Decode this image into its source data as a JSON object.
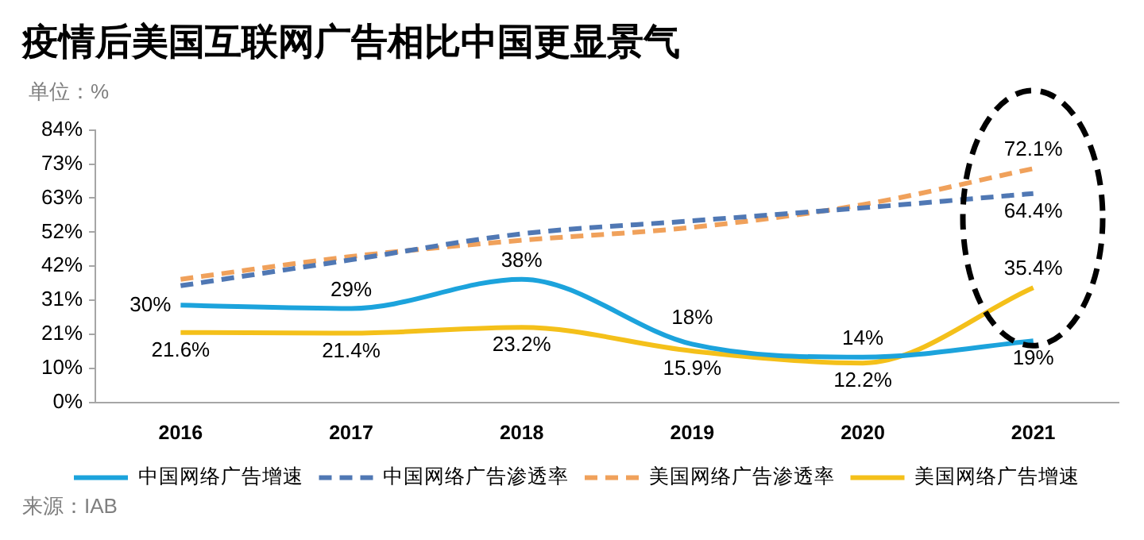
{
  "chart_data": {
    "type": "line",
    "title": "疫情后美国互联网广告相比中国更显景气",
    "ylabel": "单位：%",
    "categories": [
      "2016",
      "2017",
      "2018",
      "2019",
      "2020",
      "2021"
    ],
    "series": [
      {
        "name": "中国网络广告增速",
        "color": "#1ca3dc",
        "line_style": "solid",
        "values": [
          30,
          29,
          38,
          18,
          14,
          19
        ],
        "value_labels": [
          "30%",
          "29%",
          "38%",
          "18%",
          "14%",
          "19%"
        ]
      },
      {
        "name": "中国网络广告渗透率",
        "color": "#5078b4",
        "line_style": "dashed",
        "values": [
          36,
          44,
          52,
          56,
          60,
          64.4
        ],
        "value_labels": [
          null,
          null,
          null,
          null,
          null,
          "64.4%"
        ]
      },
      {
        "name": "美国网络广告渗透率",
        "color": "#f0a15b",
        "line_style": "dashed",
        "values": [
          38,
          45,
          50,
          54,
          61,
          72.1
        ],
        "value_labels": [
          null,
          null,
          null,
          null,
          null,
          "72.1%"
        ]
      },
      {
        "name": "美国网络广告增速",
        "color": "#f4c01a",
        "line_style": "solid",
        "values": [
          21.6,
          21.4,
          23.2,
          15.9,
          12.2,
          35.4
        ],
        "value_labels": [
          "21.6%",
          "21.4%",
          "23.2%",
          "15.9%",
          "12.2%",
          "35.4%"
        ]
      }
    ],
    "ylim": [
      0,
      84
    ],
    "yticks": [
      {
        "value": 0,
        "label": "0%"
      },
      {
        "value": 10.5,
        "label": "10%"
      },
      {
        "value": 21,
        "label": "21%"
      },
      {
        "value": 31.5,
        "label": "31%"
      },
      {
        "value": 42,
        "label": "42%"
      },
      {
        "value": 52.5,
        "label": "52%"
      },
      {
        "value": 63,
        "label": "63%"
      },
      {
        "value": 73.5,
        "label": "73%"
      },
      {
        "value": 84,
        "label": "84%"
      }
    ],
    "grid": false,
    "legend": "bottom",
    "marker": "none",
    "annotations": [
      "来源：IAB"
    ]
  }
}
